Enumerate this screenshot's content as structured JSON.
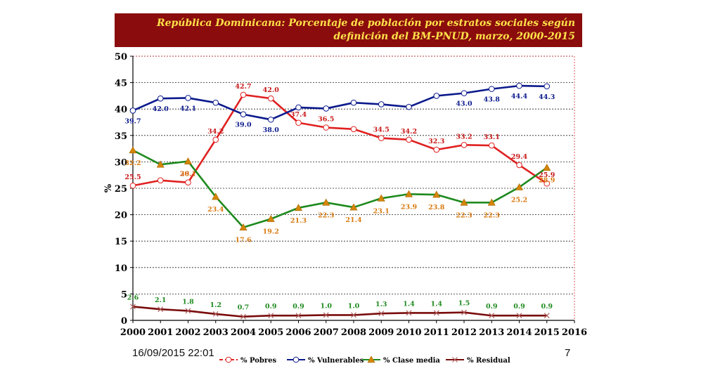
{
  "header": {
    "title": "República Dominicana:  Porcentaje de población por estratos sociales según definición del BM-PNUD, marzo, 2000-2015"
  },
  "footer": {
    "date": "16/09/2015 22:01",
    "page": "7"
  },
  "colors": {
    "title_bg": "#8b0c0c",
    "title_fg": "#ffe24a",
    "pobres": "#e02020",
    "vulnerables": "#0b1a8c",
    "clase_media": "#1e8a1e",
    "residual": "#7a0c0c",
    "marker_triangle": "#d4860a",
    "label_orange": "#d87a10"
  },
  "chart_data": {
    "type": "line",
    "ylabel": "%",
    "xlim": [
      2000,
      2016
    ],
    "ylim": [
      0,
      50
    ],
    "ytick_step": 5,
    "grid": true,
    "legend_position": "bottom",
    "x_ticks": [
      "2000",
      "2001",
      "2002",
      "2003",
      "2004",
      "2005",
      "2006",
      "2007",
      "2008",
      "2009",
      "2010",
      "2011",
      "2012",
      "2013",
      "2014",
      "2015",
      "2016"
    ],
    "y_ticks": [
      "0",
      "5",
      "10",
      "15",
      "20",
      "25",
      "30",
      "35",
      "40",
      "45",
      "50"
    ],
    "x": [
      2000,
      2001,
      2002,
      2003,
      2004,
      2005,
      2006,
      2007,
      2008,
      2009,
      2010,
      2011,
      2012,
      2013,
      2014,
      2015
    ],
    "series": [
      {
        "name": "% Pobres",
        "key": "pobres",
        "values": [
          25.5,
          26.5,
          26.1,
          34.2,
          42.7,
          42.0,
          37.4,
          36.5,
          36.2,
          34.5,
          34.2,
          32.3,
          33.2,
          33.1,
          29.4,
          25.9
        ],
        "labels": [
          "25.5",
          "",
          "26.1",
          "34.2",
          "42.7",
          "42.0",
          "37.4",
          "36.5",
          "",
          "34.5",
          "34.2",
          "32.3",
          "33.2",
          "33.1",
          "29.4",
          "25.9"
        ]
      },
      {
        "name": "% Vulnerables",
        "key": "vulnerables",
        "values": [
          39.7,
          42.0,
          42.1,
          41.2,
          39.0,
          38.0,
          40.3,
          40.1,
          41.2,
          40.9,
          40.4,
          42.5,
          43.0,
          43.8,
          44.4,
          44.3
        ],
        "labels": [
          "39.7",
          "42.0",
          "42.1",
          "",
          "39.0",
          "38.0",
          "",
          "",
          "",
          "",
          "",
          "",
          "43.0",
          "43.8",
          "44.4",
          "44.3"
        ]
      },
      {
        "name": "% Clase media",
        "key": "clase_media",
        "values": [
          32.2,
          29.5,
          30.1,
          23.4,
          17.6,
          19.2,
          21.3,
          22.3,
          21.4,
          23.1,
          23.9,
          23.8,
          22.3,
          22.3,
          25.2,
          28.9
        ],
        "labels": [
          "32.2",
          "",
          "30.1",
          "23.4",
          "17.6",
          "19.2",
          "21.3",
          "22.3",
          "21.4",
          "23.1",
          "23.9",
          "23.8",
          "22.3",
          "22.3",
          "25.2",
          "28.9"
        ]
      },
      {
        "name": "% Residual",
        "key": "residual",
        "values": [
          2.6,
          2.1,
          1.8,
          1.2,
          0.7,
          0.9,
          0.9,
          1.0,
          1.0,
          1.3,
          1.4,
          1.4,
          1.5,
          0.9,
          0.9,
          0.9
        ],
        "labels": [
          "2.6",
          "2.1",
          "1.8",
          "1.2",
          "0.7",
          "0.9",
          "0.9",
          "1.0",
          "1.0",
          "1.3",
          "1.4",
          "1.4",
          "1.5",
          "0.9",
          "0.9",
          "0.9"
        ]
      }
    ]
  }
}
